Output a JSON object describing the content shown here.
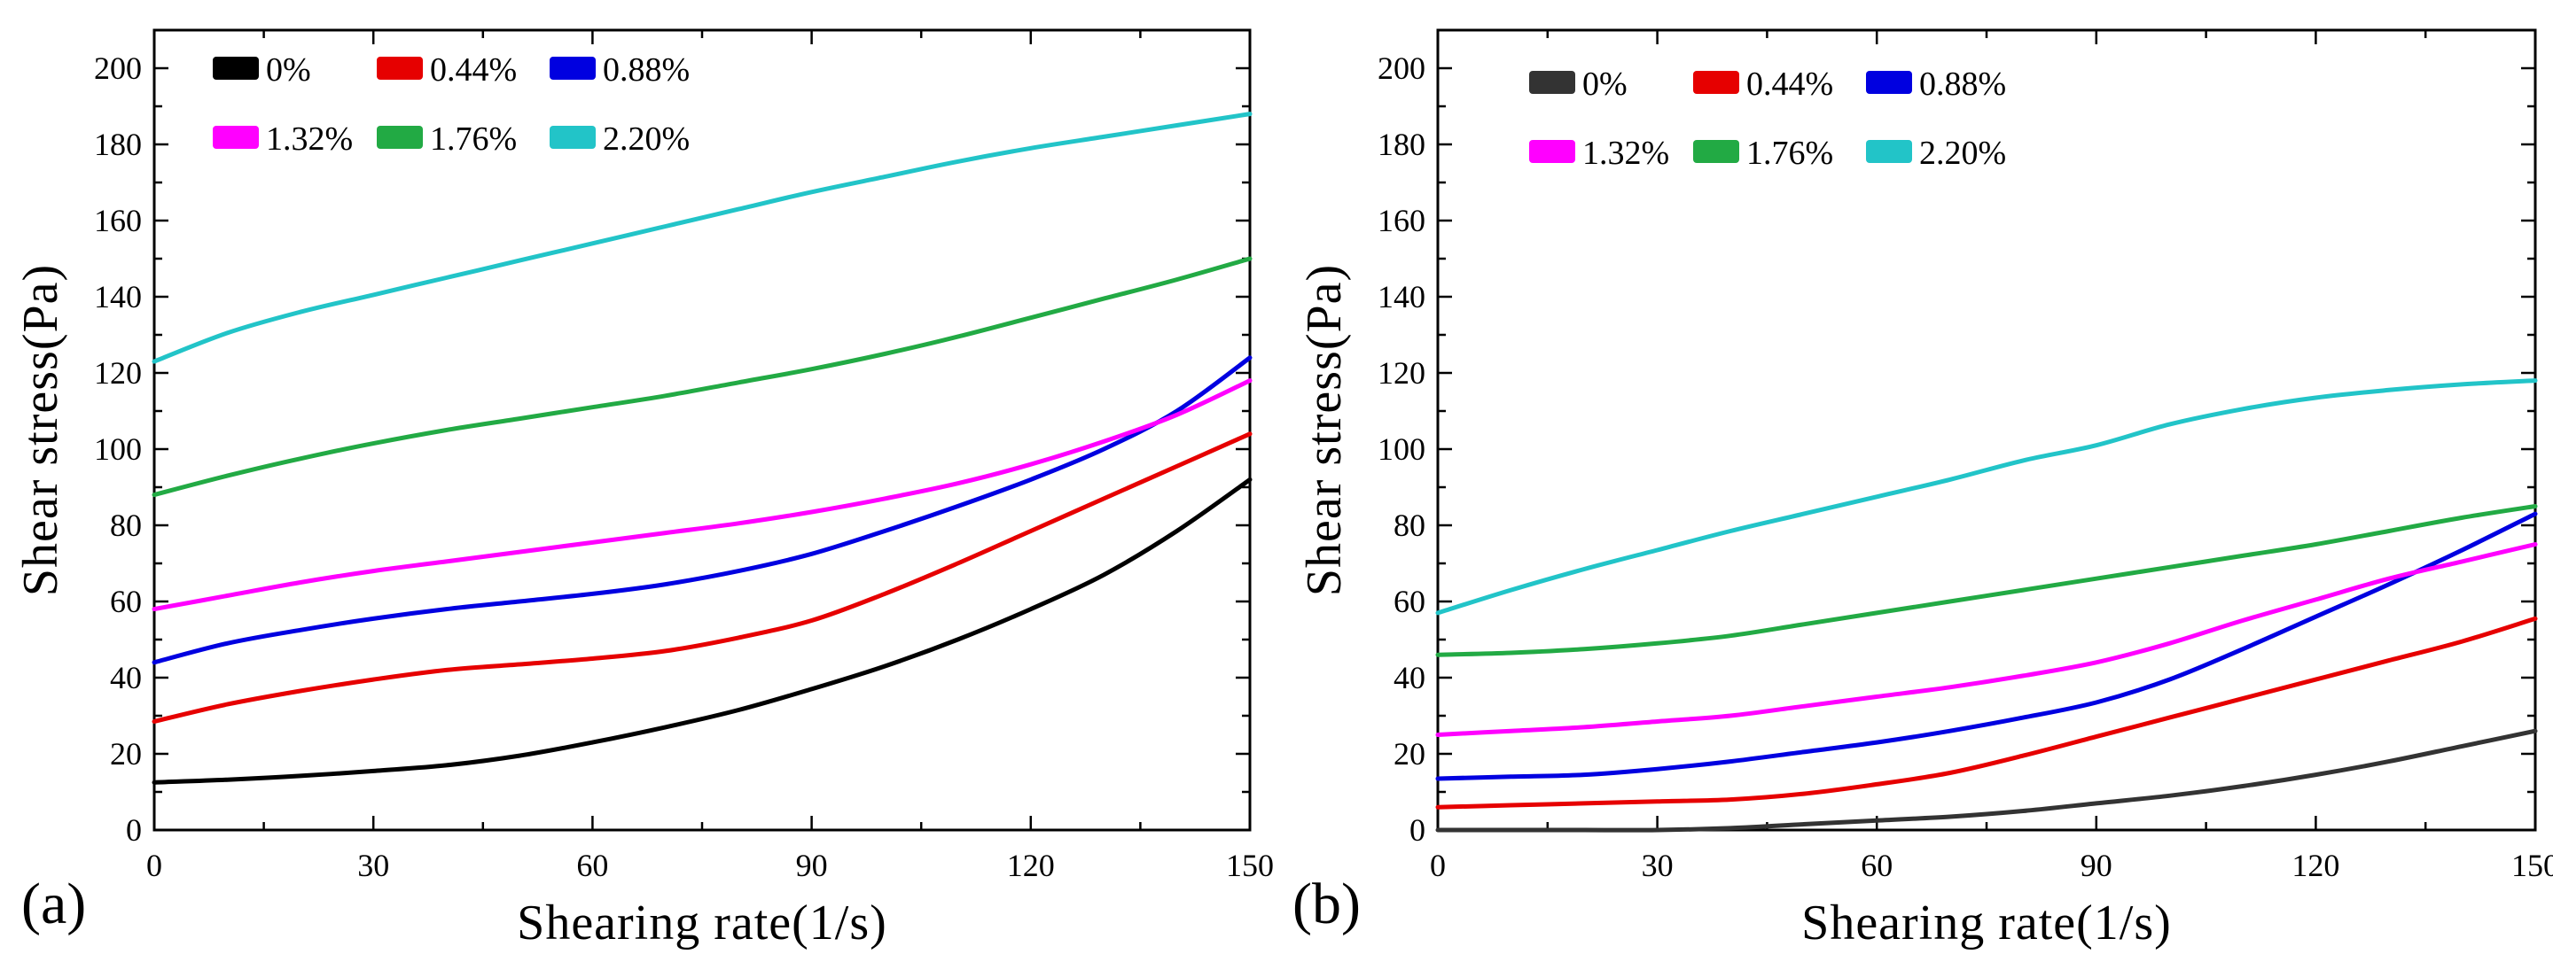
{
  "figure": {
    "panels": [
      {
        "tag": "(a)"
      },
      {
        "tag": "(b)"
      }
    ]
  },
  "chart_data": [
    {
      "type": "line",
      "panel_label": "(a)",
      "xlabel": "Shearing rate(1/s)",
      "ylabel": "Shear stress(Pa)",
      "xlim": [
        0,
        150
      ],
      "ylim": [
        0,
        210
      ],
      "xticks": [
        0,
        30,
        60,
        90,
        120,
        150
      ],
      "yticks": [
        0,
        20,
        40,
        60,
        80,
        100,
        120,
        140,
        160,
        180,
        200
      ],
      "grid": false,
      "legend_position": "top-left",
      "series": [
        {
          "name": "0%",
          "color": "#000000",
          "x": [
            0,
            10,
            20,
            30,
            40,
            50,
            60,
            70,
            80,
            90,
            100,
            110,
            120,
            130,
            140,
            150
          ],
          "y": [
            12.5,
            13.2,
            14.2,
            15.5,
            17,
            19.5,
            23,
            27,
            31.5,
            37,
            43,
            50,
            58,
            67,
            78.5,
            92
          ]
        },
        {
          "name": "0.44%",
          "color": "#e60000",
          "x": [
            0,
            10,
            20,
            30,
            40,
            50,
            60,
            70,
            80,
            90,
            100,
            110,
            120,
            130,
            140,
            150
          ],
          "y": [
            28.5,
            33,
            36.5,
            39.5,
            42,
            43.5,
            45,
            47,
            50.5,
            55,
            62,
            70,
            78.5,
            87,
            95.5,
            104
          ]
        },
        {
          "name": "0.88%",
          "color": "#0000e0",
          "x": [
            0,
            10,
            20,
            30,
            40,
            50,
            60,
            70,
            80,
            90,
            100,
            110,
            120,
            130,
            140,
            150
          ],
          "y": [
            44,
            49,
            52.5,
            55.5,
            58,
            60,
            62,
            64.5,
            68,
            72.5,
            78.5,
            85,
            92,
            100,
            110,
            124
          ]
        },
        {
          "name": "1.32%",
          "color": "#ff00ff",
          "x": [
            0,
            10,
            20,
            30,
            40,
            50,
            60,
            70,
            80,
            90,
            100,
            110,
            120,
            130,
            140,
            150
          ],
          "y": [
            58,
            61.5,
            65,
            68,
            70.5,
            73,
            75.5,
            78,
            80.5,
            83.5,
            87,
            91,
            96,
            102,
            109,
            118
          ]
        },
        {
          "name": "1.76%",
          "color": "#22aa44",
          "x": [
            0,
            10,
            20,
            30,
            40,
            50,
            60,
            70,
            80,
            90,
            100,
            110,
            120,
            130,
            140,
            150
          ],
          "y": [
            88,
            93,
            97.5,
            101.5,
            105,
            108,
            111,
            114,
            117.5,
            121,
            125,
            129.5,
            134.5,
            139.5,
            144.5,
            150
          ]
        },
        {
          "name": "2.20%",
          "color": "#22c4c8",
          "x": [
            0,
            10,
            20,
            30,
            40,
            50,
            60,
            70,
            80,
            90,
            100,
            110,
            120,
            130,
            140,
            150
          ],
          "y": [
            123,
            130.5,
            136,
            140.5,
            145,
            149.5,
            154,
            158.5,
            163,
            167.5,
            171.5,
            175.5,
            179,
            182,
            185,
            188
          ]
        }
      ]
    },
    {
      "type": "line",
      "panel_label": "(b)",
      "xlabel": "Shearing rate(1/s)",
      "ylabel": "Shear stress(Pa)",
      "xlim": [
        0,
        150
      ],
      "ylim": [
        0,
        210
      ],
      "xticks": [
        0,
        30,
        60,
        90,
        120,
        150
      ],
      "yticks": [
        0,
        20,
        40,
        60,
        80,
        100,
        120,
        140,
        160,
        180,
        200
      ],
      "grid": false,
      "legend_position": "top-left",
      "series": [
        {
          "name": "0%",
          "color": "#333333",
          "x": [
            0,
            10,
            20,
            30,
            40,
            50,
            60,
            70,
            80,
            90,
            100,
            110,
            120,
            130,
            140,
            150
          ],
          "y": [
            0,
            0,
            0,
            0,
            0.5,
            1.5,
            2.5,
            3.5,
            5,
            7,
            9,
            11.5,
            14.5,
            18,
            22,
            26
          ]
        },
        {
          "name": "0.44%",
          "color": "#e60000",
          "x": [
            0,
            10,
            20,
            30,
            40,
            50,
            60,
            70,
            80,
            90,
            100,
            110,
            120,
            130,
            140,
            150
          ],
          "y": [
            6,
            6.5,
            7,
            7.5,
            8,
            9.5,
            12,
            15,
            19.5,
            24.5,
            29.5,
            34.5,
            39.5,
            44.5,
            49.5,
            55.5
          ]
        },
        {
          "name": "0.88%",
          "color": "#0000e0",
          "x": [
            0,
            10,
            20,
            30,
            40,
            50,
            60,
            70,
            80,
            90,
            100,
            110,
            120,
            130,
            140,
            150
          ],
          "y": [
            13.5,
            14,
            14.5,
            16,
            18,
            20.5,
            23,
            26,
            29.5,
            33.5,
            39.5,
            47.5,
            56,
            64.5,
            73.5,
            83
          ]
        },
        {
          "name": "1.32%",
          "color": "#ff00ff",
          "x": [
            0,
            10,
            20,
            30,
            40,
            50,
            60,
            70,
            80,
            90,
            100,
            110,
            120,
            130,
            140,
            150
          ],
          "y": [
            25,
            26,
            27,
            28.5,
            30,
            32.5,
            35,
            37.5,
            40.5,
            44,
            49,
            55,
            60.5,
            66,
            70.5,
            75
          ]
        },
        {
          "name": "1.76%",
          "color": "#22aa44",
          "x": [
            0,
            10,
            20,
            30,
            40,
            50,
            60,
            70,
            80,
            90,
            100,
            110,
            120,
            130,
            140,
            150
          ],
          "y": [
            46,
            46.5,
            47.5,
            49,
            51,
            54,
            57,
            60,
            63,
            66,
            69,
            72,
            75,
            78.5,
            82,
            85
          ]
        },
        {
          "name": "2.20%",
          "color": "#22c4c8",
          "x": [
            0,
            10,
            20,
            30,
            40,
            50,
            60,
            70,
            80,
            90,
            100,
            110,
            120,
            130,
            140,
            150
          ],
          "y": [
            57,
            63,
            68.5,
            73.5,
            78.5,
            83,
            87.5,
            92,
            97,
            101,
            106.5,
            110.5,
            113.5,
            115.5,
            117,
            118
          ]
        }
      ]
    }
  ]
}
